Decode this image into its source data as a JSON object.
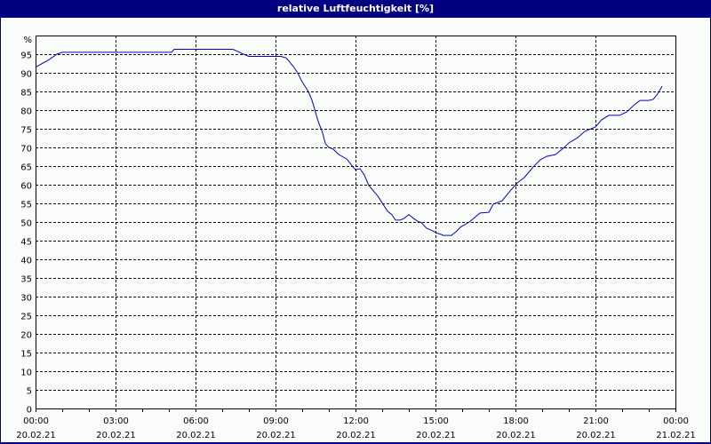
{
  "window": {
    "title": "relative Luftfeuchtigkeit [%]"
  },
  "colors": {
    "titlebar": "#000080",
    "background": "#fbfdfb",
    "series": "#0000c8",
    "grid": "#000000",
    "axis": "#000000"
  },
  "chart_data": {
    "type": "line",
    "title": "relative Luftfeuchtigkeit [%]",
    "xlabel": "",
    "ylabel": "%",
    "ylim": [
      0,
      96
    ],
    "xlim_hours": [
      0,
      24
    ],
    "grid": true,
    "legend": "none",
    "y_unit_label": "%",
    "y_ticks": [
      0,
      5,
      10,
      15,
      20,
      25,
      30,
      35,
      40,
      45,
      50,
      55,
      60,
      65,
      70,
      75,
      80,
      85,
      90,
      95
    ],
    "x_ticks": [
      {
        "time": "00:00",
        "date": "20.02.21"
      },
      {
        "time": "03:00",
        "date": "20.02.21"
      },
      {
        "time": "06:00",
        "date": "20.02.21"
      },
      {
        "time": "09:00",
        "date": "20.02.21"
      },
      {
        "time": "12:00",
        "date": "20.02.21"
      },
      {
        "time": "15:00",
        "date": "20.02.21"
      },
      {
        "time": "18:00",
        "date": "20.02.21"
      },
      {
        "time": "21:00",
        "date": "20.02.21"
      },
      {
        "time": "00:00",
        "date": "21.02.21"
      }
    ],
    "series": [
      {
        "name": "relative Luftfeuchtigkeit",
        "x_hours": [
          0.0,
          0.5,
          0.8,
          1.0,
          2.0,
          3.0,
          4.0,
          5.0,
          5.1,
          5.2,
          6.0,
          7.0,
          7.4,
          7.5,
          7.8,
          8.0,
          9.0,
          9.2,
          9.4,
          9.67,
          9.83,
          10.0,
          10.23,
          10.37,
          10.6,
          10.77,
          10.87,
          11.0,
          11.17,
          11.37,
          11.67,
          11.9,
          12.0,
          12.17,
          12.33,
          12.5,
          12.83,
          13.03,
          13.2,
          13.37,
          13.5,
          13.67,
          13.83,
          14.0,
          14.17,
          14.33,
          14.47,
          14.67,
          14.9,
          15.03,
          15.2,
          15.3,
          15.4,
          15.6,
          15.8,
          15.93,
          16.27,
          16.5,
          16.67,
          17.0,
          17.17,
          17.5,
          17.83,
          18.07,
          18.33,
          18.67,
          18.93,
          19.17,
          19.5,
          19.83,
          20.0,
          20.33,
          20.6,
          21.0,
          21.23,
          21.5,
          21.9,
          22.17,
          22.5,
          22.67,
          23.0,
          23.17,
          23.33,
          23.5
        ],
        "values": [
          91.5,
          93.5,
          95.0,
          95.5,
          95.5,
          95.5,
          95.5,
          95.5,
          95.5,
          96.3,
          96.3,
          96.3,
          96.3,
          96.0,
          95.0,
          94.4,
          94.4,
          94.4,
          94.0,
          91.7,
          90.0,
          87.6,
          85.0,
          82.6,
          77.0,
          73.8,
          71.0,
          70.0,
          69.5,
          68.1,
          66.9,
          64.8,
          64.0,
          64.3,
          62.6,
          59.8,
          57.0,
          54.8,
          52.9,
          51.9,
          50.5,
          50.5,
          51.0,
          52.0,
          51.0,
          50.2,
          49.8,
          48.3,
          47.6,
          47.1,
          46.7,
          46.4,
          46.4,
          46.4,
          47.6,
          48.6,
          50.0,
          51.4,
          52.4,
          52.6,
          54.8,
          55.7,
          58.6,
          60.5,
          61.9,
          64.8,
          66.7,
          67.6,
          68.1,
          70.0,
          71.2,
          72.6,
          74.3,
          75.5,
          77.4,
          78.6,
          78.6,
          79.5,
          81.7,
          82.6,
          82.6,
          82.9,
          84.3,
          86.4
        ]
      }
    ]
  }
}
